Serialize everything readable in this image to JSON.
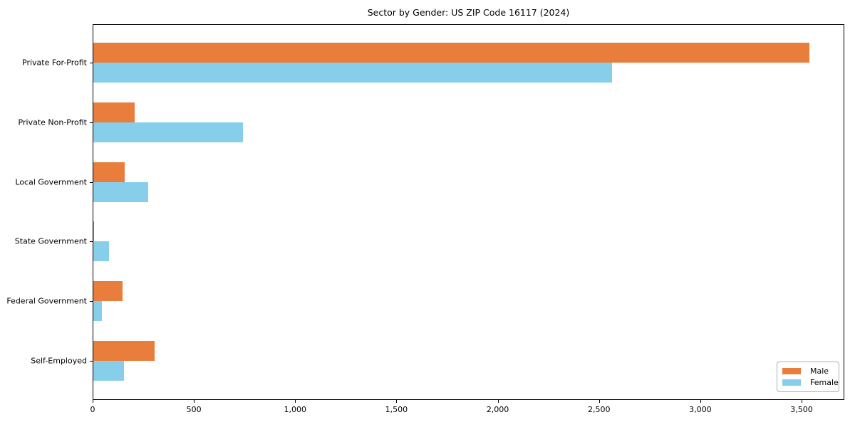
{
  "chart_data": {
    "type": "bar",
    "orientation": "horizontal",
    "title": "Sector by Gender: US ZIP Code 16117 (2024)",
    "xlabel": "",
    "ylabel": "",
    "categories": [
      "Private For-Profit",
      "Private Non-Profit",
      "Local Government",
      "State Government",
      "Federal Government",
      "Self-Employed"
    ],
    "series": [
      {
        "name": "Male",
        "color": "#e87d3c",
        "values": [
          3535,
          205,
          156,
          4,
          144,
          303
        ]
      },
      {
        "name": "Female",
        "color": "#87ceeb",
        "values": [
          2561,
          739,
          270,
          78,
          43,
          150
        ]
      }
    ],
    "xticks": [
      0,
      500,
      1000,
      1500,
      2000,
      2500,
      3000,
      3500
    ],
    "xtick_labels": [
      "0",
      "500",
      "1,000",
      "1,500",
      "2,000",
      "2,500",
      "3,000",
      "3,500"
    ],
    "xlim": [
      0,
      3711
    ],
    "grid": false,
    "legend": {
      "position": "lower right",
      "entries": [
        "Male",
        "Female"
      ]
    },
    "colors": {
      "spine": "#000000",
      "background": "#ffffff",
      "legend_border": "#b0b0b0"
    }
  }
}
